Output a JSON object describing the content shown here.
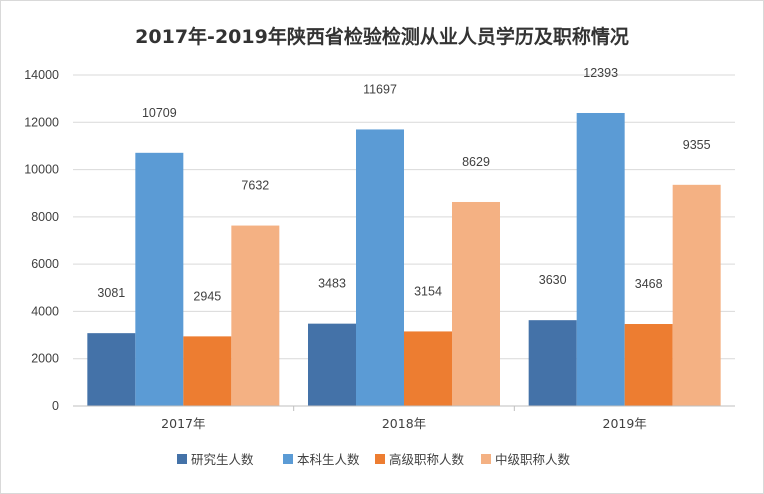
{
  "chart_data": {
    "type": "bar",
    "title": "2017年-2019年陕西省检验检测从业人员学历及职称情况",
    "xlabel": "",
    "ylabel": "",
    "categories": [
      "2017年",
      "2018年",
      "2019年"
    ],
    "ylim": [
      0,
      14000
    ],
    "yticks": [
      0,
      2000,
      4000,
      6000,
      8000,
      10000,
      12000,
      14000
    ],
    "grid": true,
    "legend_position": "bottom",
    "series": [
      {
        "name": "研究生人数",
        "color": "#4472a8",
        "values": [
          3081,
          3483,
          3630
        ]
      },
      {
        "name": "本科生人数",
        "color": "#5b9bd5",
        "values": [
          10709,
          11697,
          12393
        ]
      },
      {
        "name": "高级职称人数",
        "color": "#ed7d31",
        "values": [
          2945,
          3154,
          3468
        ]
      },
      {
        "name": "中级职称人数",
        "color": "#f4b183",
        "values": [
          7632,
          8629,
          9355
        ]
      }
    ]
  }
}
